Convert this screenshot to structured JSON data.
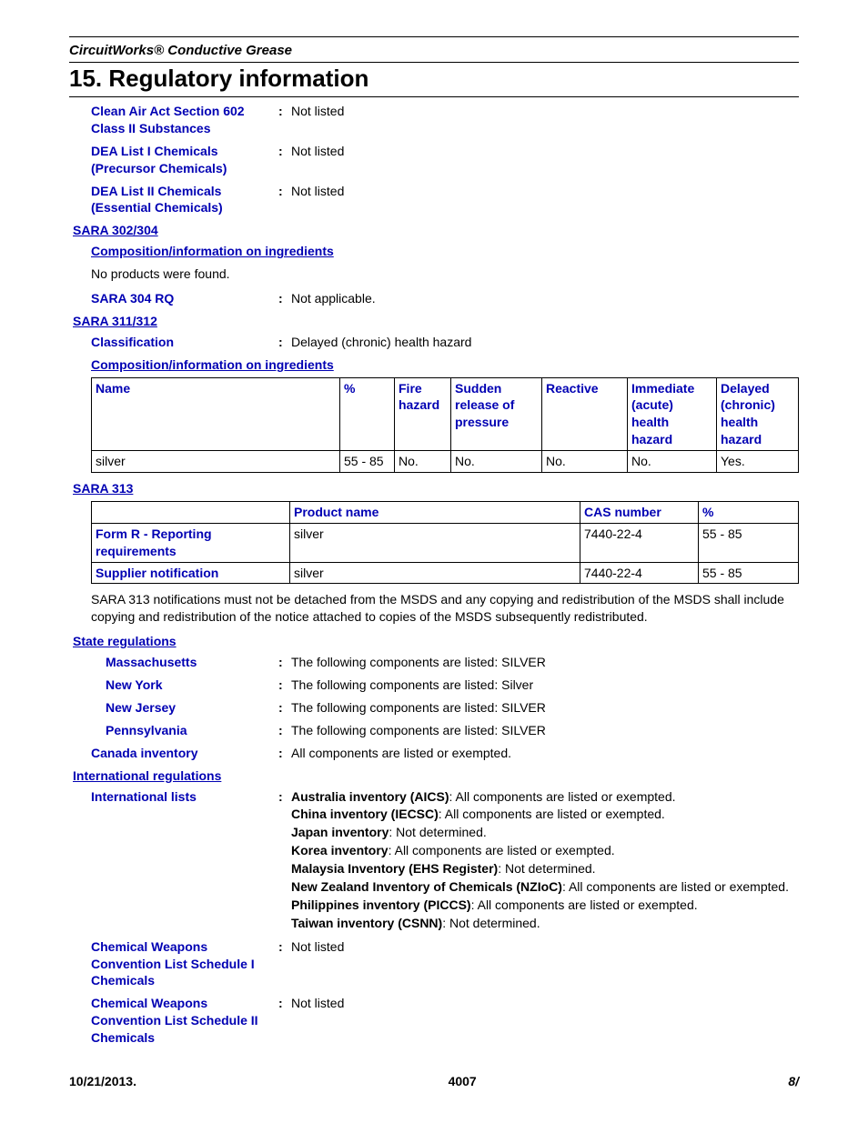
{
  "header": {
    "product": "CircuitWorks® Conductive Grease",
    "section": "15. Regulatory information"
  },
  "rows_top": [
    {
      "label": "Clean Air Act Section 602 Class II Substances",
      "value": "Not listed"
    },
    {
      "label": "DEA List I Chemicals (Precursor Chemicals)",
      "value": "Not listed"
    },
    {
      "label": "DEA List II Chemicals (Essential Chemicals)",
      "value": "Not listed"
    }
  ],
  "sara_302_304": {
    "heading": "SARA 302/304",
    "sub": "Composition/information on ingredients",
    "text": "No products were found.",
    "rq_label": "SARA 304 RQ",
    "rq_value": "Not applicable."
  },
  "sara_311_312": {
    "heading": "SARA 311/312",
    "class_label": "Classification",
    "class_value": "Delayed (chronic) health hazard",
    "sub": "Composition/information on ingredients",
    "table": {
      "headers": [
        "Name",
        "%",
        "Fire hazard",
        "Sudden release of pressure",
        "Reactive",
        "Immediate (acute) health hazard",
        "Delayed (chronic) health hazard"
      ],
      "row": [
        "silver",
        "55 - 85",
        "No.",
        "No.",
        "No.",
        "No.",
        "Yes."
      ],
      "col_widths": [
        "auto",
        "60px",
        "62px",
        "100px",
        "94px",
        "98px",
        "90px"
      ]
    }
  },
  "sara_313": {
    "heading": "SARA 313",
    "headers": [
      "",
      "Product name",
      "CAS number",
      "%"
    ],
    "col_widths": [
      "218px",
      "auto",
      "130px",
      "110px"
    ],
    "rows": [
      {
        "label": "Form R - Reporting requirements",
        "cells": [
          "silver",
          "7440-22-4",
          "55 - 85"
        ]
      },
      {
        "label": "Supplier notification",
        "cells": [
          "silver",
          "7440-22-4",
          "55 - 85"
        ]
      }
    ],
    "note": "SARA 313 notifications must not be detached from the MSDS and any copying and redistribution of the MSDS shall include copying and redistribution of the notice attached to copies of the MSDS subsequently redistributed."
  },
  "state_reg": {
    "heading": "State regulations",
    "rows": [
      {
        "label": "Massachusetts",
        "value": "The following components are listed: SILVER"
      },
      {
        "label": "New York",
        "value": "The following components are listed: Silver"
      },
      {
        "label": "New Jersey",
        "value": "The following components are listed: SILVER"
      },
      {
        "label": "Pennsylvania",
        "value": "The following components are listed: SILVER"
      }
    ]
  },
  "canada": {
    "label": "Canada inventory",
    "value": "All components are listed or exempted."
  },
  "intl": {
    "heading": "International regulations",
    "label": "International lists",
    "lines": [
      {
        "b": "Australia inventory (AICS)",
        "t": ": All components are listed or exempted."
      },
      {
        "b": "China inventory (IECSC)",
        "t": ": All components are listed or exempted."
      },
      {
        "b": "Japan inventory",
        "t": ": Not determined."
      },
      {
        "b": "Korea inventory",
        "t": ": All components are listed or exempted."
      },
      {
        "b": "Malaysia Inventory (EHS Register)",
        "t": ": Not determined."
      },
      {
        "b": "New Zealand Inventory of Chemicals (NZIoC)",
        "t": ": All components are listed or exempted."
      },
      {
        "b": "Philippines inventory (PICCS)",
        "t": ": All components are listed or exempted."
      },
      {
        "b": "Taiwan inventory (CSNN)",
        "t": ": Not determined."
      }
    ]
  },
  "cwc": [
    {
      "label": "Chemical Weapons Convention List Schedule I Chemicals",
      "value": "Not listed"
    },
    {
      "label": "Chemical Weapons Convention List Schedule II Chemicals",
      "value": "Not listed"
    }
  ],
  "footer": {
    "date": "10/21/2013.",
    "code": "4007",
    "page": "8/"
  },
  "colors": {
    "label_blue": "#0000b3",
    "text": "#000000",
    "bg": "#ffffff"
  }
}
